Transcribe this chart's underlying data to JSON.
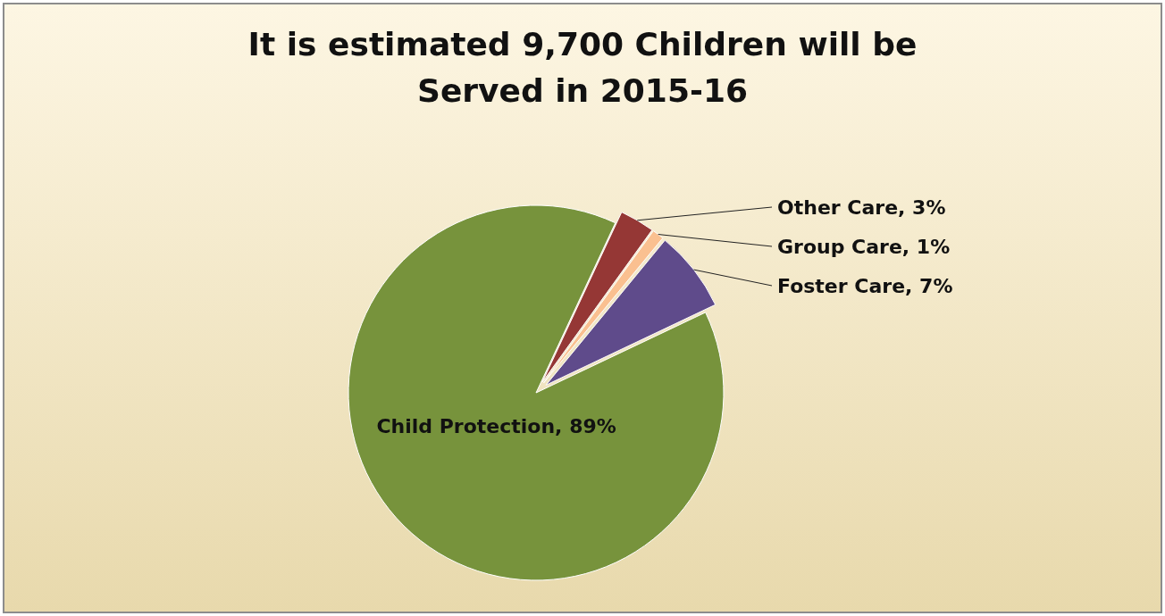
{
  "chart_data": {
    "type": "pie",
    "title": "It is estimated 9,700 Children will be Served in 2015-16",
    "categories": [
      "Other Care",
      "Group Care",
      "Foster Care",
      "Child Protection"
    ],
    "values": [
      3,
      1,
      7,
      89
    ],
    "colors": [
      "#953735",
      "#fac090",
      "#5f4b8b",
      "#77933c"
    ],
    "value_labels": [
      "3%",
      "1%",
      "7%",
      "89%"
    ]
  }
}
